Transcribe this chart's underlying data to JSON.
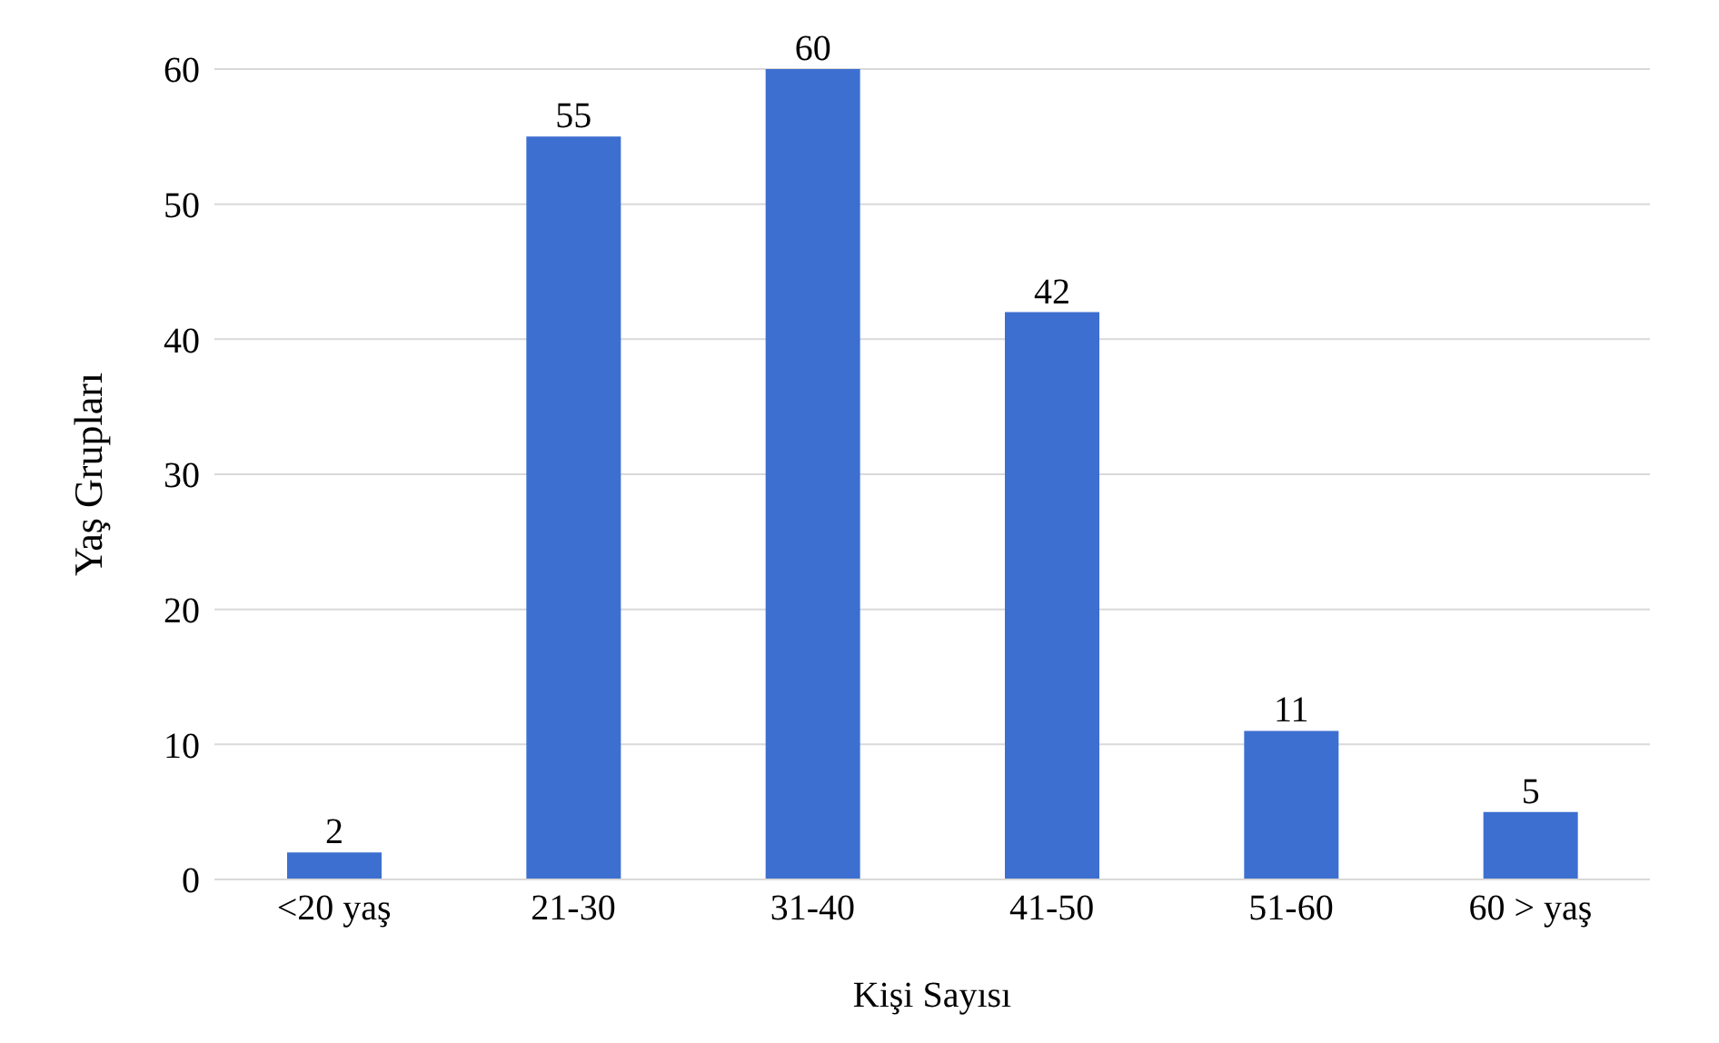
{
  "chart_data": {
    "type": "bar",
    "xlabel": "Kişi Sayısı",
    "ylabel": "Yaş Grupları",
    "categories": [
      "<20 yaş",
      "21-30",
      "31-40",
      "41-50",
      "51-60",
      "60  > yaş"
    ],
    "values": [
      2,
      55,
      60,
      42,
      11,
      5
    ],
    "color": "#3d6fd0",
    "ylim": [
      0,
      60
    ],
    "yticks": [
      0,
      10,
      20,
      30,
      40,
      50,
      60
    ],
    "grid": "y",
    "data_labels": true
  }
}
